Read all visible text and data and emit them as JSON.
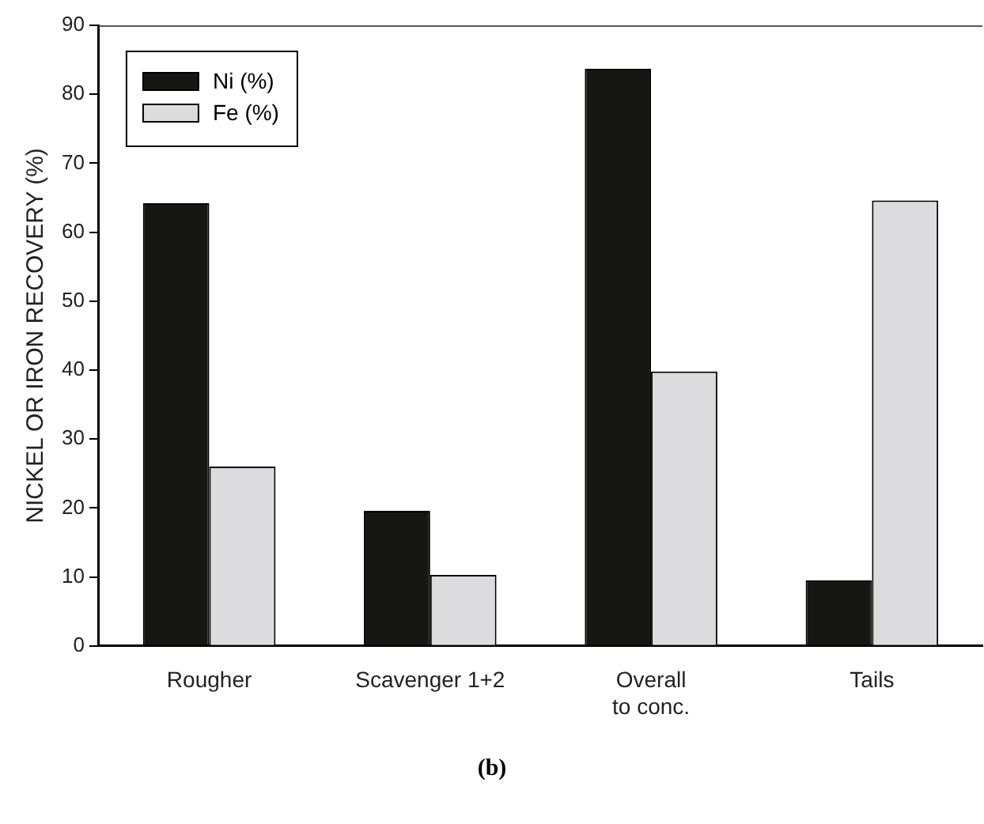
{
  "chart_data": {
    "type": "bar",
    "ylabel": "NICKEL OR IRON RECOVERY (%)",
    "categories": [
      "Rougher",
      "Scavenger 1+2",
      "Overall\nto conc.",
      "Tails"
    ],
    "series": [
      {
        "name": "Ni (%)",
        "color": "#161612",
        "values": [
          64.2,
          19.6,
          83.7,
          9.5
        ]
      },
      {
        "name": "Fe (%)",
        "color": "#dcdbdd",
        "values": [
          26.0,
          10.3,
          39.8,
          64.6
        ]
      }
    ],
    "ylim": [
      0,
      90
    ],
    "yticks": [
      0,
      10,
      20,
      30,
      40,
      50,
      60,
      70,
      80,
      90
    ],
    "grid": false,
    "legend": "top left",
    "annotations": [
      "(b)"
    ]
  }
}
